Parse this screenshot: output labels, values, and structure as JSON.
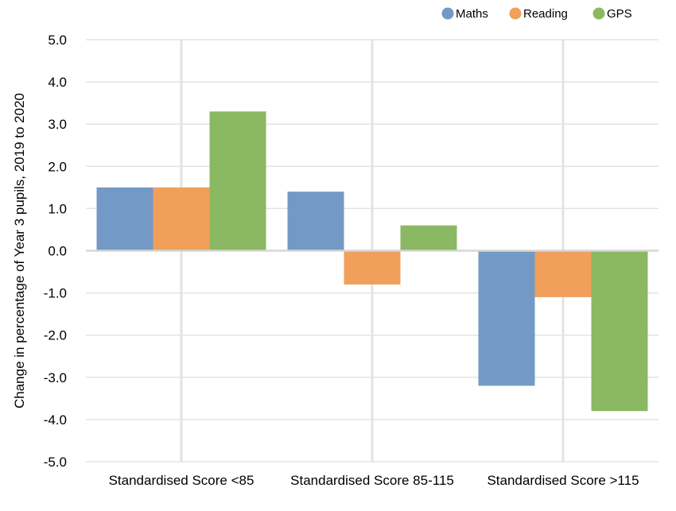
{
  "chart_data": {
    "type": "bar",
    "categories": [
      "Standardised Score <85",
      "Standardised Score 85-115",
      "Standardised Score >115"
    ],
    "series": [
      {
        "name": "Maths",
        "color": "#7399C6",
        "values": [
          1.5,
          1.4,
          -3.2
        ]
      },
      {
        "name": "Reading",
        "color": "#F0A05A",
        "values": [
          1.5,
          -0.8,
          -1.1
        ]
      },
      {
        "name": "GPS",
        "color": "#8BB863",
        "values": [
          3.3,
          0.6,
          -3.8
        ]
      }
    ],
    "ylabel": "Change in percentage of Year 3 pupils, 2019 to 2020",
    "ylim": [
      -5.0,
      5.0
    ],
    "yticks": [
      "5.0",
      "4.0",
      "3.0",
      "2.0",
      "1.0",
      "0.0",
      "-1.0",
      "-2.0",
      "-3.0",
      "-4.0",
      "-5.0"
    ],
    "grid": true,
    "legend_position": "top-right"
  }
}
